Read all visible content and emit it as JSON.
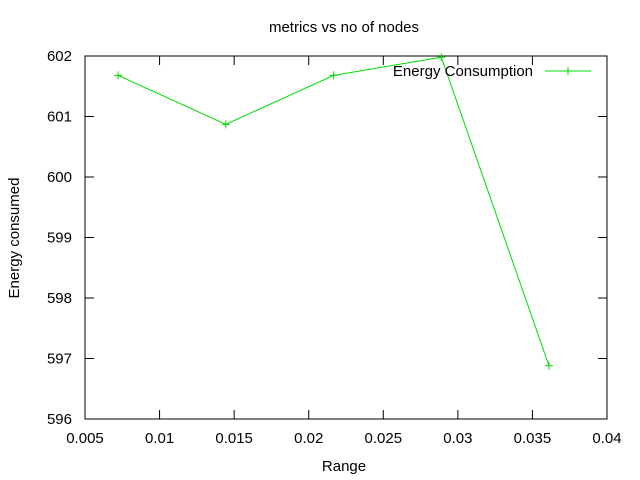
{
  "chart_data": {
    "type": "line",
    "title": "metrics vs no of nodes",
    "xlabel": "Range",
    "ylabel": "Energy consumed",
    "xlim": [
      0.005,
      0.04
    ],
    "ylim": [
      596,
      602
    ],
    "x_ticks": [
      0.005,
      0.01,
      0.015,
      0.02,
      0.025,
      0.03,
      0.035,
      0.04
    ],
    "x_tick_labels": [
      "0.005",
      "0.01",
      "0.015",
      "0.02",
      "0.025",
      "0.03",
      "0.035",
      "0.04"
    ],
    "y_ticks": [
      596,
      597,
      598,
      599,
      600,
      601,
      602
    ],
    "y_tick_labels": [
      "596",
      "597",
      "598",
      "599",
      "600",
      "601",
      "602"
    ],
    "grid": false,
    "legend_position": "top-right",
    "series": [
      {
        "name": "Energy Consumption",
        "color": "#00dd00",
        "marker": "plus",
        "x": [
          0.00722,
          0.01444,
          0.02167,
          0.02889,
          0.03611
        ],
        "y": [
          601.68,
          600.87,
          601.68,
          601.98,
          596.88
        ]
      }
    ]
  }
}
